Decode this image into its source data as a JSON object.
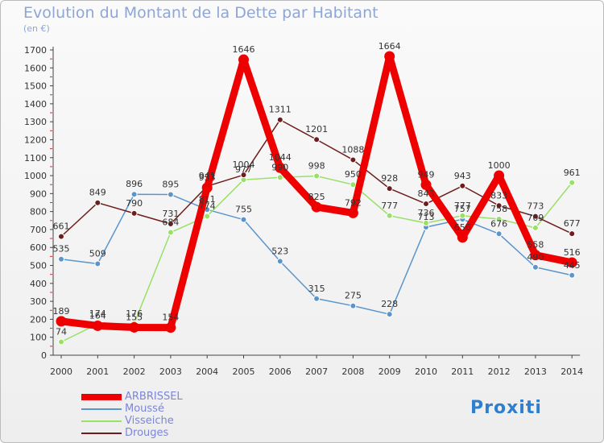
{
  "title": "Evolution du Montant de la Dette par Habitant",
  "unit_label": "(en €)",
  "logo_text": "Proxiti",
  "chart_data": {
    "type": "line",
    "x": [
      "2000",
      "2001",
      "2002",
      "2003",
      "2004",
      "2005",
      "2006",
      "2007",
      "2008",
      "2009",
      "2010",
      "2011",
      "2012",
      "2013",
      "2014"
    ],
    "ylim": [
      0,
      1700
    ],
    "yticks": [
      0,
      100,
      200,
      300,
      400,
      500,
      600,
      700,
      800,
      900,
      1000,
      1100,
      1200,
      1300,
      1400,
      1500,
      1600,
      1700
    ],
    "grid": false,
    "legend_position": "bottom-left",
    "series": [
      {
        "name": "ARBRISSEL",
        "color": "#ee0000",
        "values": [
          189,
          164,
          155,
          154,
          933,
          1646,
          1044,
          825,
          792,
          1664,
          949,
          656,
          1000,
          558,
          516
        ]
      },
      {
        "name": "Moussé",
        "color": "#5b95cc",
        "values": [
          535,
          509,
          896,
          895,
          811,
          755,
          523,
          315,
          275,
          228,
          713,
          757,
          676,
          490,
          445
        ]
      },
      {
        "name": "Visseiche",
        "color": "#99e066",
        "values": [
          74,
          174,
          176,
          684,
          774,
          977,
          990,
          998,
          950,
          777,
          736,
          777,
          758,
          709,
          961
        ]
      },
      {
        "name": "Drouges",
        "color": "#6e1d1d",
        "values": [
          661,
          849,
          790,
          731,
          941,
          1004,
          1311,
          1201,
          1088,
          928,
          843,
          943,
          833,
          773,
          677
        ]
      }
    ]
  }
}
